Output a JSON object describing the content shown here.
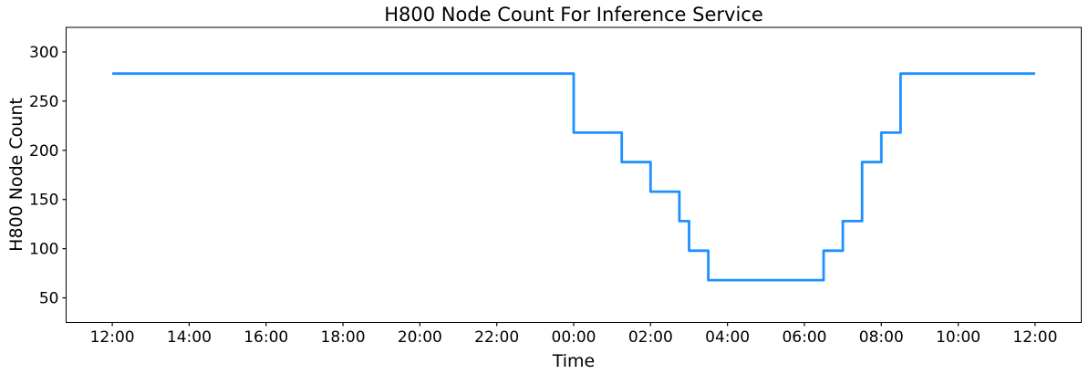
{
  "chart_data": {
    "type": "line",
    "subtype": "step",
    "title": "H800 Node Count For Inference Service",
    "xlabel": "Time",
    "ylabel": "H800 Node Count",
    "line_color": "#1E90FF",
    "line_width": 2.8,
    "axis_color": "#000000",
    "background_color": "#ffffff",
    "grid": false,
    "legend": "none",
    "xlim_hours": [
      -1.2,
      25.2
    ],
    "ylim": [
      25,
      325
    ],
    "x_ticks": [
      {
        "hour": 0,
        "label": "12:00"
      },
      {
        "hour": 2,
        "label": "14:00"
      },
      {
        "hour": 4,
        "label": "16:00"
      },
      {
        "hour": 6,
        "label": "18:00"
      },
      {
        "hour": 8,
        "label": "20:00"
      },
      {
        "hour": 10,
        "label": "22:00"
      },
      {
        "hour": 12,
        "label": "00:00"
      },
      {
        "hour": 14,
        "label": "02:00"
      },
      {
        "hour": 16,
        "label": "04:00"
      },
      {
        "hour": 18,
        "label": "06:00"
      },
      {
        "hour": 20,
        "label": "08:00"
      },
      {
        "hour": 22,
        "label": "10:00"
      },
      {
        "hour": 24,
        "label": "12:00"
      }
    ],
    "y_ticks": [
      50,
      100,
      150,
      200,
      250,
      300
    ],
    "series": [
      {
        "name": "H800 node count",
        "segments": [
          {
            "start": "12:00",
            "end": "00:00",
            "start_hour": 0,
            "end_hour": 12,
            "value": 278
          },
          {
            "start": "00:00",
            "end": "01:15",
            "start_hour": 12,
            "end_hour": 13.25,
            "value": 218
          },
          {
            "start": "01:15",
            "end": "02:00",
            "start_hour": 13.25,
            "end_hour": 14,
            "value": 188
          },
          {
            "start": "02:00",
            "end": "02:45",
            "start_hour": 14,
            "end_hour": 14.75,
            "value": 158
          },
          {
            "start": "02:45",
            "end": "03:00",
            "start_hour": 14.75,
            "end_hour": 15,
            "value": 128
          },
          {
            "start": "03:00",
            "end": "03:30",
            "start_hour": 15,
            "end_hour": 15.5,
            "value": 98
          },
          {
            "start": "03:30",
            "end": "06:30",
            "start_hour": 15.5,
            "end_hour": 18.5,
            "value": 68
          },
          {
            "start": "06:30",
            "end": "07:00",
            "start_hour": 18.5,
            "end_hour": 19,
            "value": 98
          },
          {
            "start": "07:00",
            "end": "07:30",
            "start_hour": 19,
            "end_hour": 19.5,
            "value": 128
          },
          {
            "start": "07:30",
            "end": "08:00",
            "start_hour": 19.5,
            "end_hour": 20,
            "value": 188
          },
          {
            "start": "08:00",
            "end": "08:30",
            "start_hour": 20,
            "end_hour": 20.5,
            "value": 218
          },
          {
            "start": "08:30",
            "end": "12:00",
            "start_hour": 20.5,
            "end_hour": 24,
            "value": 278
          }
        ]
      }
    ]
  }
}
